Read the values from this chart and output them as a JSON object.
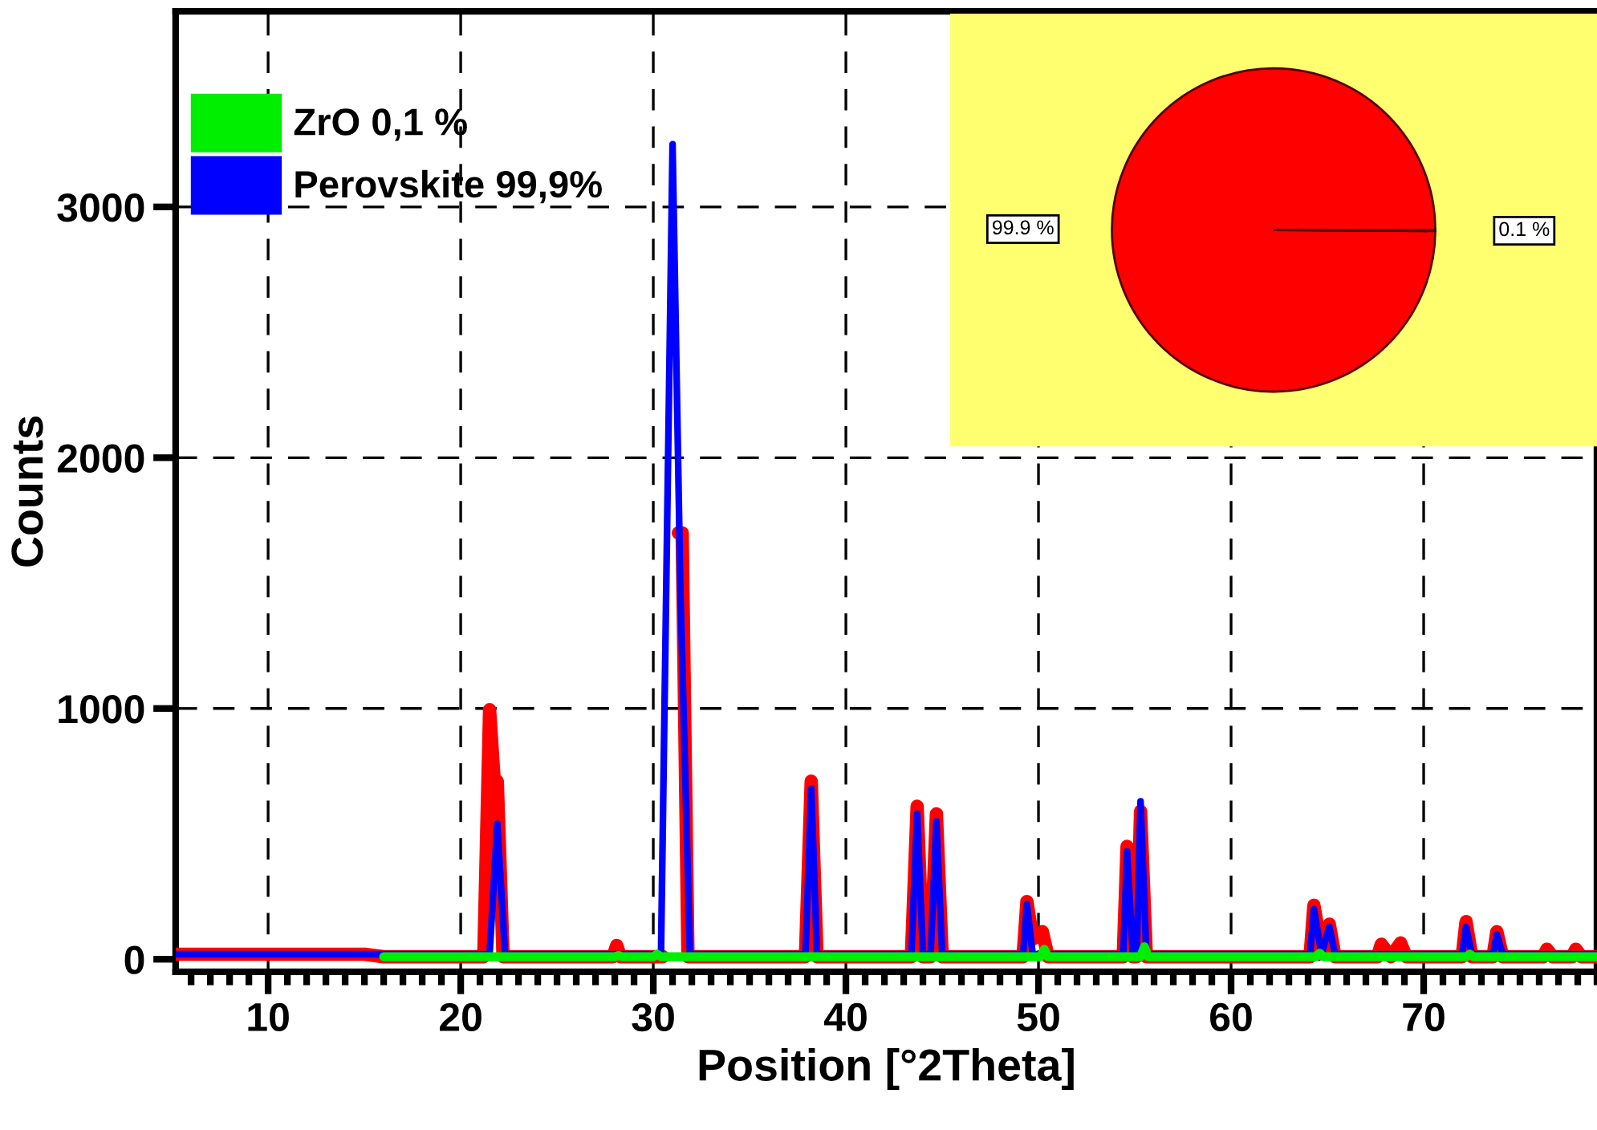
{
  "chart_data": [
    {
      "type": "line",
      "xlabel": "Position [°2Theta]",
      "ylabel": "Counts",
      "xlim": [
        5.2,
        79
      ],
      "ylim": [
        -50,
        3780
      ],
      "xticks": [
        10,
        20,
        30,
        40,
        50,
        60,
        70
      ],
      "yticks": [
        0,
        1000,
        2000,
        3000
      ],
      "grid": true,
      "legend": "top left",
      "line_style": "solid",
      "marker": "none",
      "series": [
        {
          "color": "#ff0000",
          "x": [
            5.2,
            15,
            16,
            21.2,
            21.5,
            21.75,
            21.9,
            22.2,
            27.9,
            28.1,
            28.3,
            30.5,
            30.8,
            31.1,
            31.3,
            31.5,
            31.8,
            37.9,
            38.2,
            38.5,
            43.4,
            43.7,
            44.0,
            44.4,
            44.7,
            45.0,
            49.2,
            49.4,
            49.7,
            50.2,
            50.5,
            54.4,
            54.6,
            54.9,
            55.1,
            55.3,
            55.6,
            64.1,
            64.3,
            64.7,
            65.1,
            65.4,
            67.6,
            67.8,
            68.3,
            68.8,
            69.1,
            72.0,
            72.2,
            72.5,
            73.6,
            73.8,
            74.1,
            76.2,
            76.4,
            76.7,
            77.7,
            77.9,
            78.2,
            79
          ],
          "values": [
            20,
            20,
            10,
            10,
            995,
            700,
            710,
            10,
            10,
            55,
            10,
            10,
            null,
            null,
            1700,
            1700,
            10,
            10,
            710,
            10,
            10,
            610,
            10,
            10,
            580,
            10,
            10,
            230,
            80,
            110,
            10,
            10,
            450,
            10,
            10,
            590,
            10,
            10,
            215,
            40,
            140,
            10,
            10,
            60,
            10,
            65,
            10,
            10,
            150,
            10,
            10,
            110,
            10,
            10,
            40,
            10,
            10,
            40,
            10,
            10
          ]
        },
        {
          "name": "Perovskite 99,9%",
          "color": "#0000ff",
          "x": [
            5.2,
            21.5,
            21.9,
            22.3,
            30.4,
            31.0,
            31.4,
            31.9,
            37.9,
            38.2,
            38.5,
            43.4,
            43.7,
            44.0,
            44.4,
            44.7,
            45.0,
            49.2,
            49.4,
            49.7,
            54.4,
            54.6,
            54.9,
            55.1,
            55.3,
            55.6,
            64.1,
            64.3,
            64.7,
            65.1,
            65.4,
            72.0,
            72.2,
            72.5,
            73.6,
            73.8,
            74.1,
            79
          ],
          "values": [
            20,
            20,
            540,
            20,
            20,
            3250,
            1500,
            20,
            20,
            680,
            20,
            20,
            580,
            20,
            20,
            550,
            20,
            20,
            220,
            20,
            20,
            430,
            20,
            20,
            630,
            20,
            20,
            200,
            20,
            130,
            20,
            20,
            130,
            20,
            20,
            100,
            20,
            20
          ]
        },
        {
          "name": "ZrO 0,1 %",
          "color": "#00ee00",
          "x": [
            16,
            28.0,
            28.2,
            28.4,
            30.0,
            30.2,
            30.4,
            50.1,
            50.3,
            50.5,
            55.3,
            55.5,
            55.7,
            64.4,
            64.6,
            64.8,
            72.2,
            72.4,
            72.6,
            79
          ],
          "values": [
            10,
            10,
            15,
            10,
            10,
            20,
            10,
            10,
            40,
            10,
            10,
            50,
            10,
            10,
            25,
            10,
            10,
            20,
            10,
            10
          ]
        }
      ]
    },
    {
      "type": "pie",
      "categories": [
        null,
        null
      ],
      "values": [
        99.9,
        0.1
      ],
      "colors": [
        "#ff0000",
        "#ff0000"
      ],
      "value_labels": [
        "99.9 %",
        "0.1 %"
      ]
    }
  ]
}
